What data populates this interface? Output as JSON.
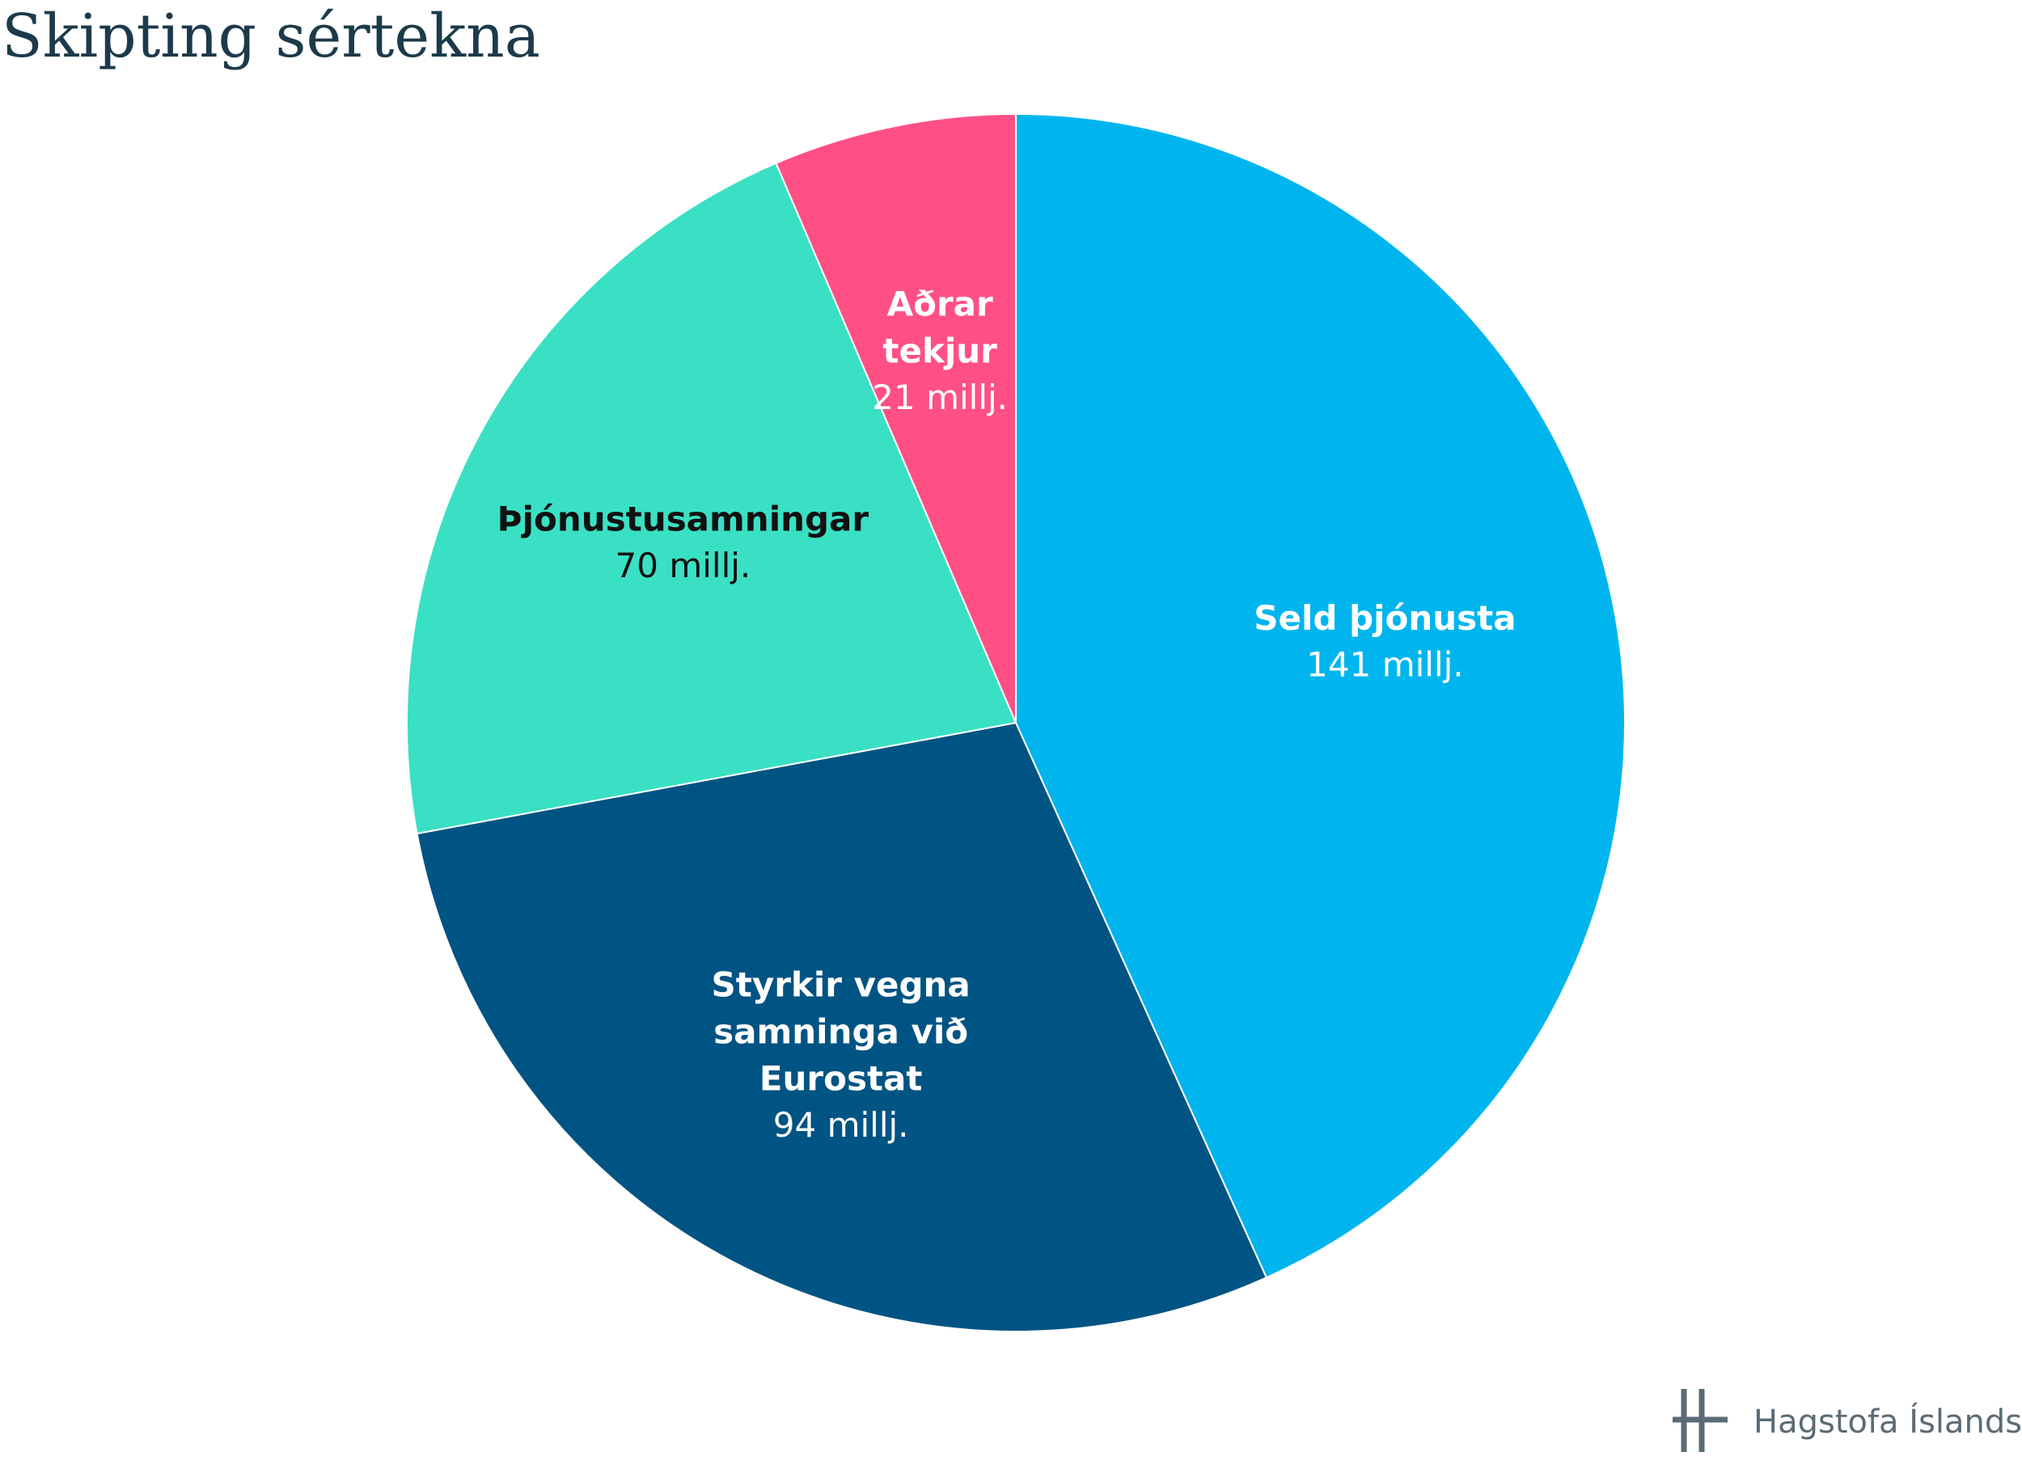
{
  "chart_data": {
    "type": "pie",
    "title": "Skipting sértekna",
    "categories": [
      "Seld þjónusta",
      "Styrkir vegna samninga við Eurostat",
      "Þjónustusamningar",
      "Aðrar tekjur"
    ],
    "values": [
      141,
      94,
      70,
      21
    ],
    "value_labels": [
      "141 millj.",
      "94 millj.",
      "70 millj.",
      "21 millj."
    ],
    "colors": [
      "#00b5ee",
      "#005483",
      "#3ae0c4",
      "#ff5086"
    ],
    "source": "Hagstofa Íslands"
  }
}
